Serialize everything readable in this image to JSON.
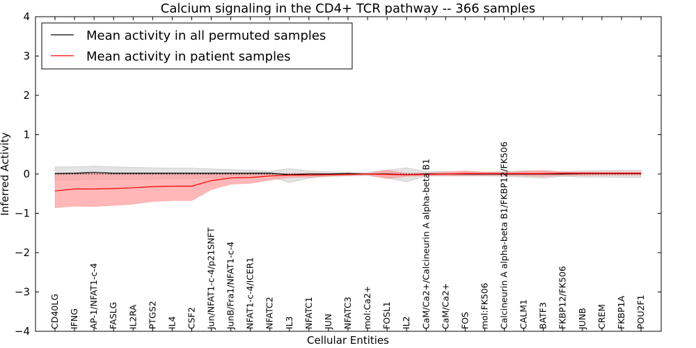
{
  "chart_data": {
    "type": "line",
    "title": "Calcium signaling in the CD4+ TCR pathway -- 366 samples",
    "xlabel": "Cellular Entities",
    "ylabel": "Inferred Activity",
    "ylim": [
      -4,
      4
    ],
    "yticks": [
      -4,
      -3,
      -2,
      -1,
      0,
      1,
      2,
      3,
      4
    ],
    "ytick_labels": [
      "−4",
      "−3",
      "−2",
      "−1",
      "0",
      "1",
      "2",
      "3",
      "4"
    ],
    "legend_position": "top-left",
    "categories": [
      "CD40LG",
      "IFNG",
      "AP-1/NFAT1-c-4",
      "FASLG",
      "IL2RA",
      "PTGS2",
      "IL4",
      "CSF2",
      "Jun/NFAT1-c-4/p21SNFT",
      "JunB/Fra1/NFAT1-c-4",
      "NFAT1-c-4/ICER1",
      "NFATC2",
      "IL3",
      "NFATC1",
      "JUN",
      "NFATC3",
      "mol:Ca2+",
      "FOSL1",
      "IL2",
      "CaM/Ca2+/Calcineurin A alpha-beta B1",
      "CaM/Ca2+",
      "FOS",
      "mol:FK506",
      "Calcineurin A alpha-beta B1/FKBP12/FK506",
      "CALM1",
      "BATF3",
      "FKBP12/FK506",
      "JUNB",
      "CREM",
      "FKBP1A",
      "POU2F1"
    ],
    "series": [
      {
        "name": "Mean activity in all permuted samples",
        "color": "#000000",
        "band_color": "#cccccc",
        "values": [
          0.01,
          0.02,
          0.04,
          0.02,
          0.02,
          0.02,
          0.02,
          0.02,
          0.02,
          0.02,
          0.02,
          0.02,
          -0.02,
          0.0,
          0.0,
          0.01,
          0.0,
          0.0,
          -0.02,
          0.0,
          0.0,
          0.0,
          0.0,
          0.0,
          0.0,
          0.0,
          0.0,
          0.01,
          0.01,
          0.01,
          0.01
        ],
        "upper": [
          0.18,
          0.18,
          0.2,
          0.18,
          0.17,
          0.16,
          0.15,
          0.15,
          0.13,
          0.11,
          0.1,
          0.07,
          0.14,
          0.08,
          0.06,
          0.05,
          0.04,
          0.1,
          0.16,
          0.06,
          0.06,
          0.06,
          0.05,
          0.06,
          0.08,
          0.08,
          0.06,
          0.08,
          0.09,
          0.1,
          0.1
        ],
        "lower": [
          -0.15,
          -0.15,
          -0.13,
          -0.14,
          -0.14,
          -0.13,
          -0.12,
          -0.12,
          -0.1,
          -0.09,
          -0.08,
          -0.06,
          -0.22,
          -0.1,
          -0.06,
          -0.05,
          -0.04,
          -0.1,
          -0.2,
          -0.05,
          -0.05,
          -0.05,
          -0.05,
          -0.06,
          -0.08,
          -0.1,
          -0.06,
          -0.08,
          -0.08,
          -0.09,
          -0.09
        ]
      },
      {
        "name": "Mean activity in patient samples",
        "color": "#ff0000",
        "band_color": "#ff9999",
        "values": [
          -0.43,
          -0.38,
          -0.38,
          -0.37,
          -0.35,
          -0.32,
          -0.31,
          -0.31,
          -0.17,
          -0.1,
          -0.09,
          -0.05,
          -0.03,
          -0.03,
          -0.02,
          -0.01,
          0.0,
          -0.01,
          -0.02,
          -0.01,
          0.0,
          0.01,
          0.01,
          0.01,
          0.01,
          0.01,
          0.02,
          0.02,
          0.02,
          0.02,
          0.02
        ],
        "upper": [
          0.0,
          0.02,
          0.02,
          0.0,
          0.0,
          0.01,
          0.0,
          0.0,
          0.0,
          0.0,
          0.01,
          0.02,
          0.01,
          0.02,
          0.01,
          0.01,
          0.01,
          0.1,
          0.02,
          0.03,
          0.05,
          0.08,
          0.05,
          0.04,
          0.07,
          0.09,
          0.05,
          0.05,
          0.05,
          0.05,
          0.05
        ],
        "lower": [
          -0.86,
          -0.82,
          -0.83,
          -0.8,
          -0.77,
          -0.7,
          -0.68,
          -0.68,
          -0.4,
          -0.26,
          -0.24,
          -0.16,
          -0.09,
          -0.08,
          -0.06,
          -0.04,
          -0.02,
          -0.12,
          -0.06,
          -0.05,
          -0.04,
          -0.05,
          -0.04,
          -0.04,
          -0.05,
          -0.06,
          -0.04,
          -0.04,
          -0.03,
          -0.03,
          -0.03
        ]
      }
    ]
  }
}
